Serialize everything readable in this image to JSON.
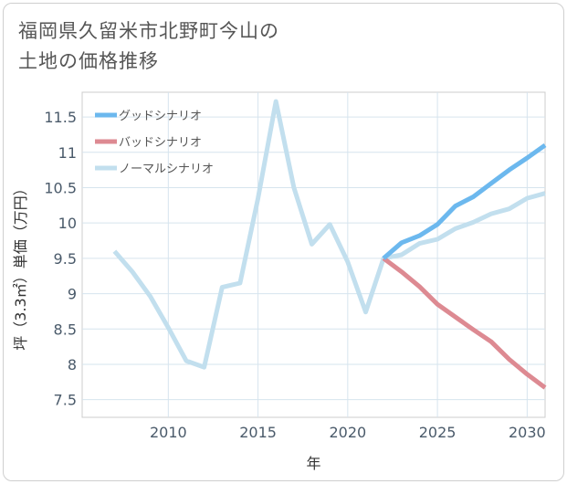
{
  "title": {
    "line1": "福岡県久留米市北野町今山の",
    "line2": "土地の価格推移"
  },
  "chart_data": {
    "type": "line",
    "xlabel": "年",
    "ylabel": "坪（3.3㎡）単価（万円）",
    "xlim": [
      2005.2,
      2031
    ],
    "ylim": [
      7.25,
      11.85
    ],
    "x_ticks": [
      2010,
      2015,
      2020,
      2025,
      2030
    ],
    "y_ticks": [
      7.5,
      8,
      8.5,
      9,
      9.5,
      10,
      10.5,
      11,
      11.5
    ],
    "grid": true,
    "legend_position": "top-left",
    "series": [
      {
        "name": "グッドシナリオ",
        "color": "#6cb8ee",
        "x": [
          2022,
          2023,
          2024,
          2025,
          2026,
          2027,
          2028,
          2029,
          2030,
          2031
        ],
        "values": [
          9.5,
          9.72,
          9.82,
          9.98,
          10.24,
          10.37,
          10.56,
          10.75,
          10.92,
          11.1
        ]
      },
      {
        "name": "バッドシナリオ",
        "color": "#dd8a92",
        "x": [
          2022,
          2023,
          2024,
          2025,
          2026,
          2027,
          2028,
          2029,
          2030,
          2031
        ],
        "values": [
          9.5,
          9.31,
          9.1,
          8.85,
          8.67,
          8.49,
          8.32,
          8.07,
          7.86,
          7.67
        ]
      },
      {
        "name": "ノーマルシナリオ",
        "color": "#c2dfee",
        "x": [
          2007,
          2008,
          2009,
          2010,
          2011,
          2012,
          2013,
          2014,
          2015,
          2016,
          2017,
          2018,
          2019,
          2020,
          2021,
          2022,
          2023,
          2024,
          2025,
          2026,
          2027,
          2028,
          2029,
          2030,
          2031
        ],
        "values": [
          9.6,
          9.31,
          8.96,
          8.52,
          8.05,
          7.96,
          9.09,
          9.15,
          10.35,
          11.72,
          10.5,
          9.7,
          9.98,
          9.45,
          8.74,
          9.5,
          9.55,
          9.71,
          9.77,
          9.92,
          10.01,
          10.13,
          10.2,
          10.35,
          10.42
        ]
      }
    ]
  }
}
